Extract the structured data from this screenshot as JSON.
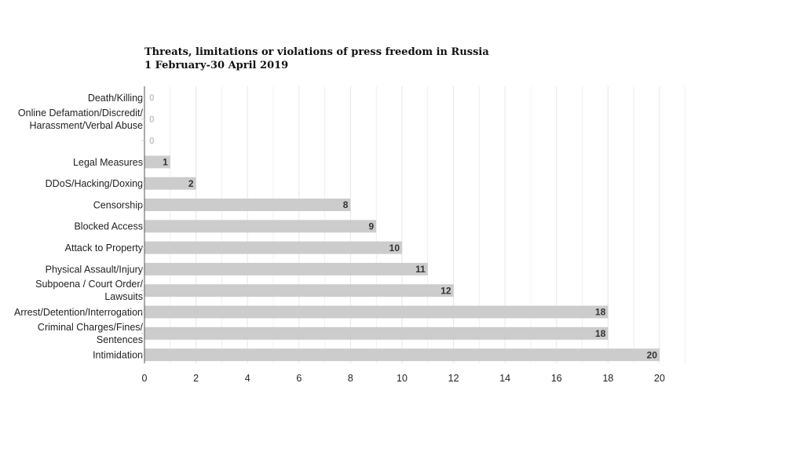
{
  "chart_data": {
    "type": "bar",
    "orientation": "horizontal",
    "title": "Threats, limitations or violations of press freedom in Russia",
    "subtitle": "1 February-30 April 2019",
    "categories": [
      "Death/Killing",
      "Online Defamation/Discredit/\nHarassment/Verbal Abuse",
      "",
      "Legal Measures",
      "DDoS/Hacking/Doxing",
      "Censorship",
      "Blocked Access",
      "Attack to Property",
      "Physical Assault/Injury",
      "Subpoena / Court Order/\nLawsuits",
      "Arrest/Detention/Interrogation",
      "Criminal Charges/Fines/\nSentences",
      "Intimidation"
    ],
    "values": [
      0,
      0,
      0,
      1,
      2,
      8,
      9,
      10,
      11,
      12,
      18,
      18,
      20
    ],
    "xlim": [
      0,
      21.3
    ],
    "xticks": [
      0,
      2,
      4,
      6,
      8,
      10,
      12,
      14,
      16,
      18,
      20
    ],
    "grid": true,
    "legend": "top-right",
    "colors": {
      "bar": "#cccccc",
      "grid": "#e6e6e6",
      "zero_label": "#c8c8c8",
      "value_label": "#333333",
      "axis": "#555555"
    }
  }
}
